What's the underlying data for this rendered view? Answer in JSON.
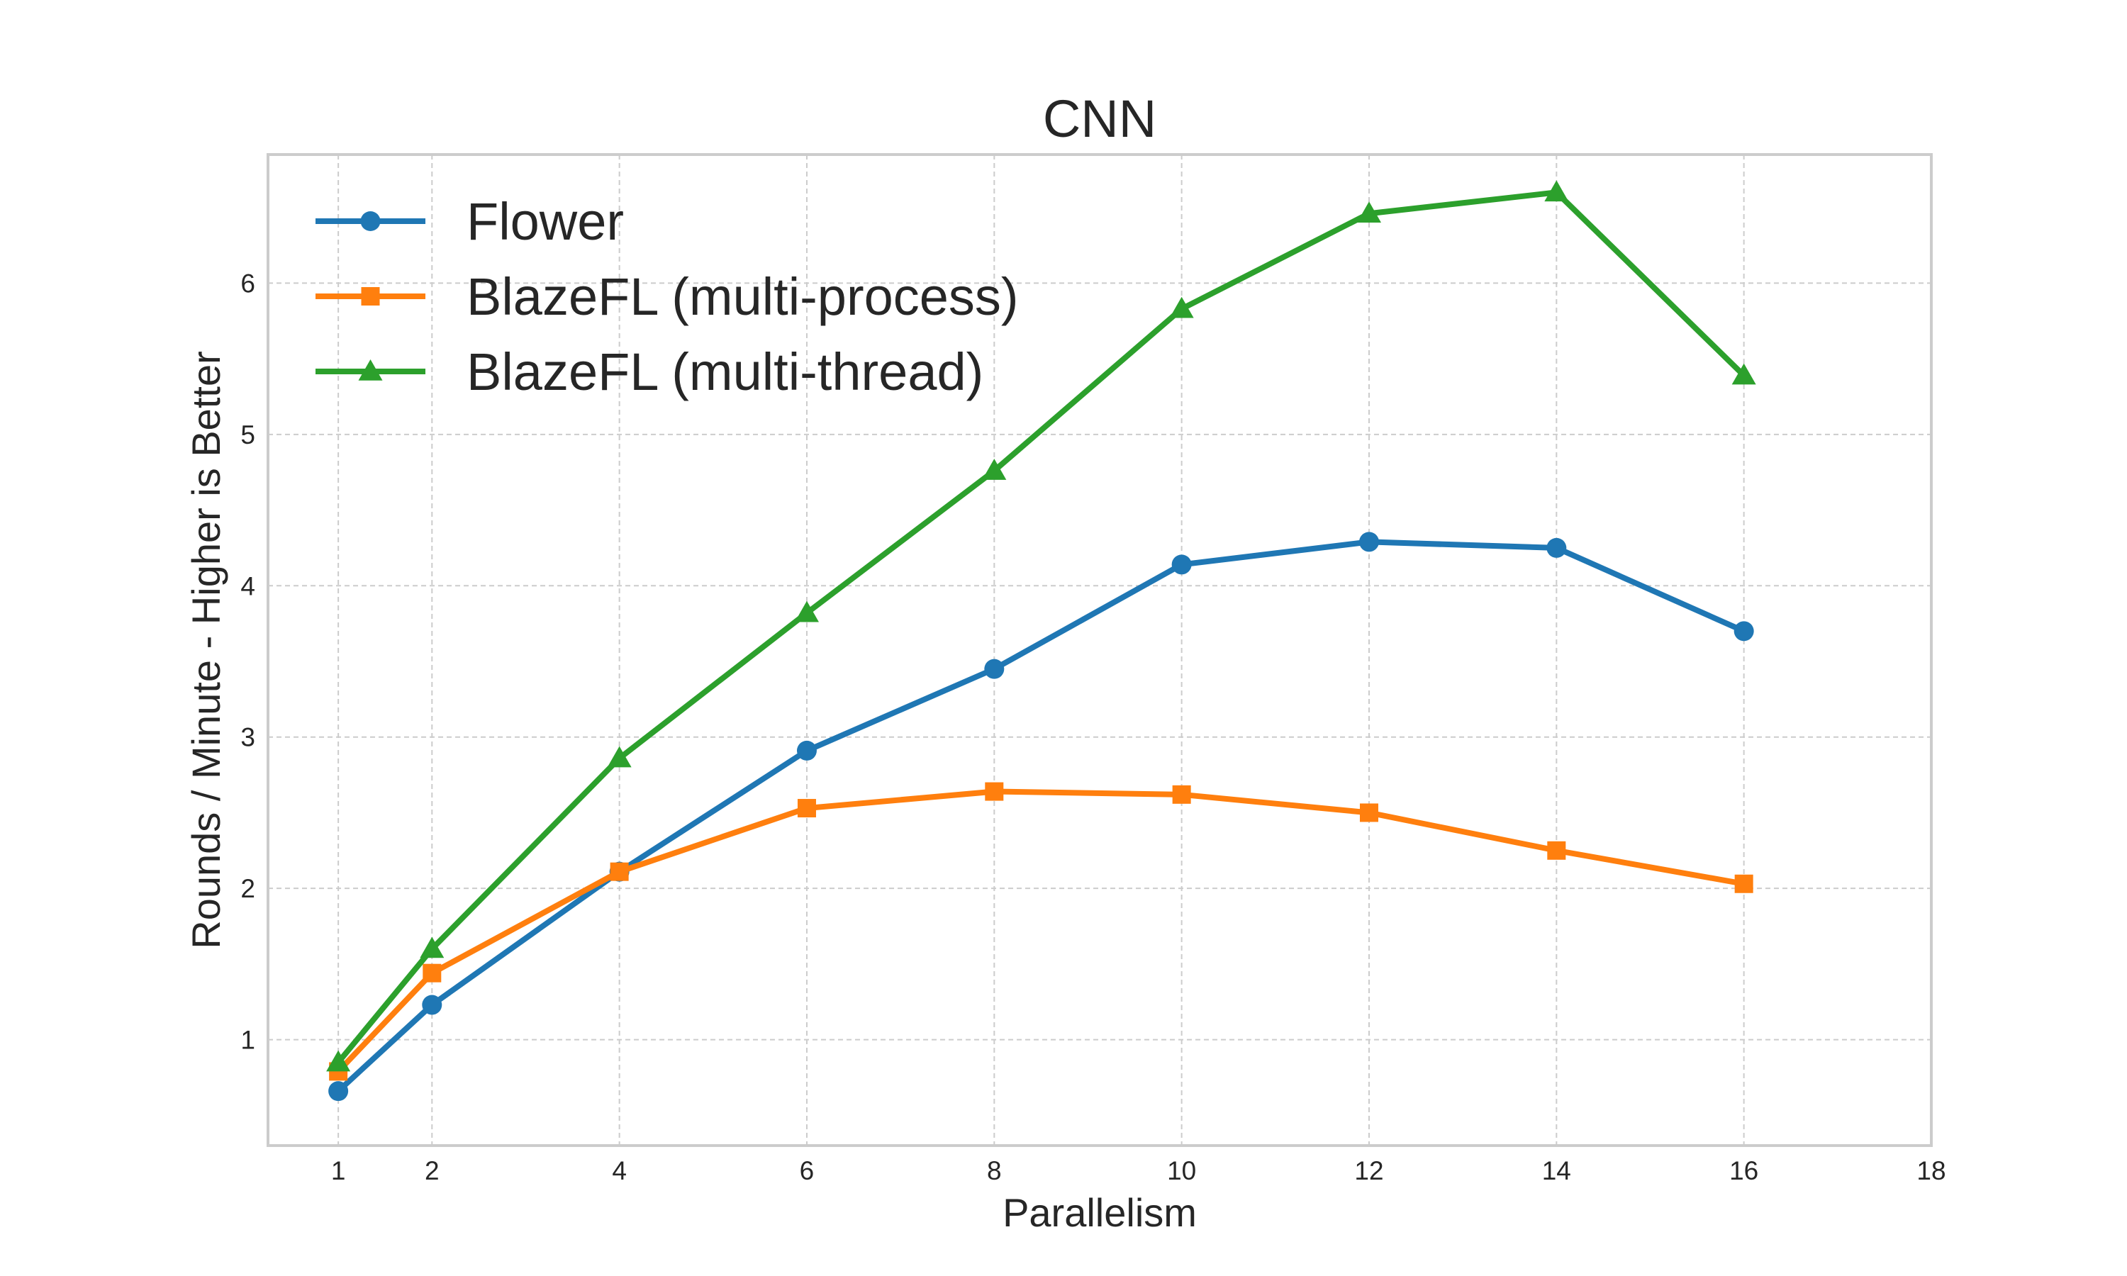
{
  "chart_data": {
    "type": "line",
    "title": "CNN",
    "xlabel": "Parallelism",
    "ylabel": "Rounds / Minute - Higher is Better",
    "xlim": [
      0.25,
      18
    ],
    "ylim": [
      0.3,
      6.85
    ],
    "xticks": [
      1,
      2,
      4,
      6,
      8,
      10,
      12,
      14,
      16,
      18
    ],
    "yticks": [
      1,
      2,
      3,
      4,
      5,
      6
    ],
    "grid": true,
    "legend_position": "top-left",
    "x": [
      1,
      2,
      4,
      6,
      8,
      10,
      12,
      14,
      16
    ],
    "series": [
      {
        "name": "Flower",
        "color": "#1f77b4",
        "marker": "circle",
        "values": [
          0.66,
          1.23,
          2.11,
          2.91,
          3.45,
          4.14,
          4.29,
          4.25,
          3.7
        ]
      },
      {
        "name": "BlazeFL (multi-process)",
        "color": "#ff7f0e",
        "marker": "square",
        "values": [
          0.79,
          1.44,
          2.11,
          2.53,
          2.64,
          2.62,
          2.5,
          2.25,
          2.03
        ]
      },
      {
        "name": "BlazeFL (multi-thread)",
        "color": "#2ca02c",
        "marker": "triangle",
        "values": [
          0.85,
          1.6,
          2.86,
          3.82,
          4.76,
          5.83,
          6.46,
          6.6,
          5.39
        ]
      }
    ]
  }
}
